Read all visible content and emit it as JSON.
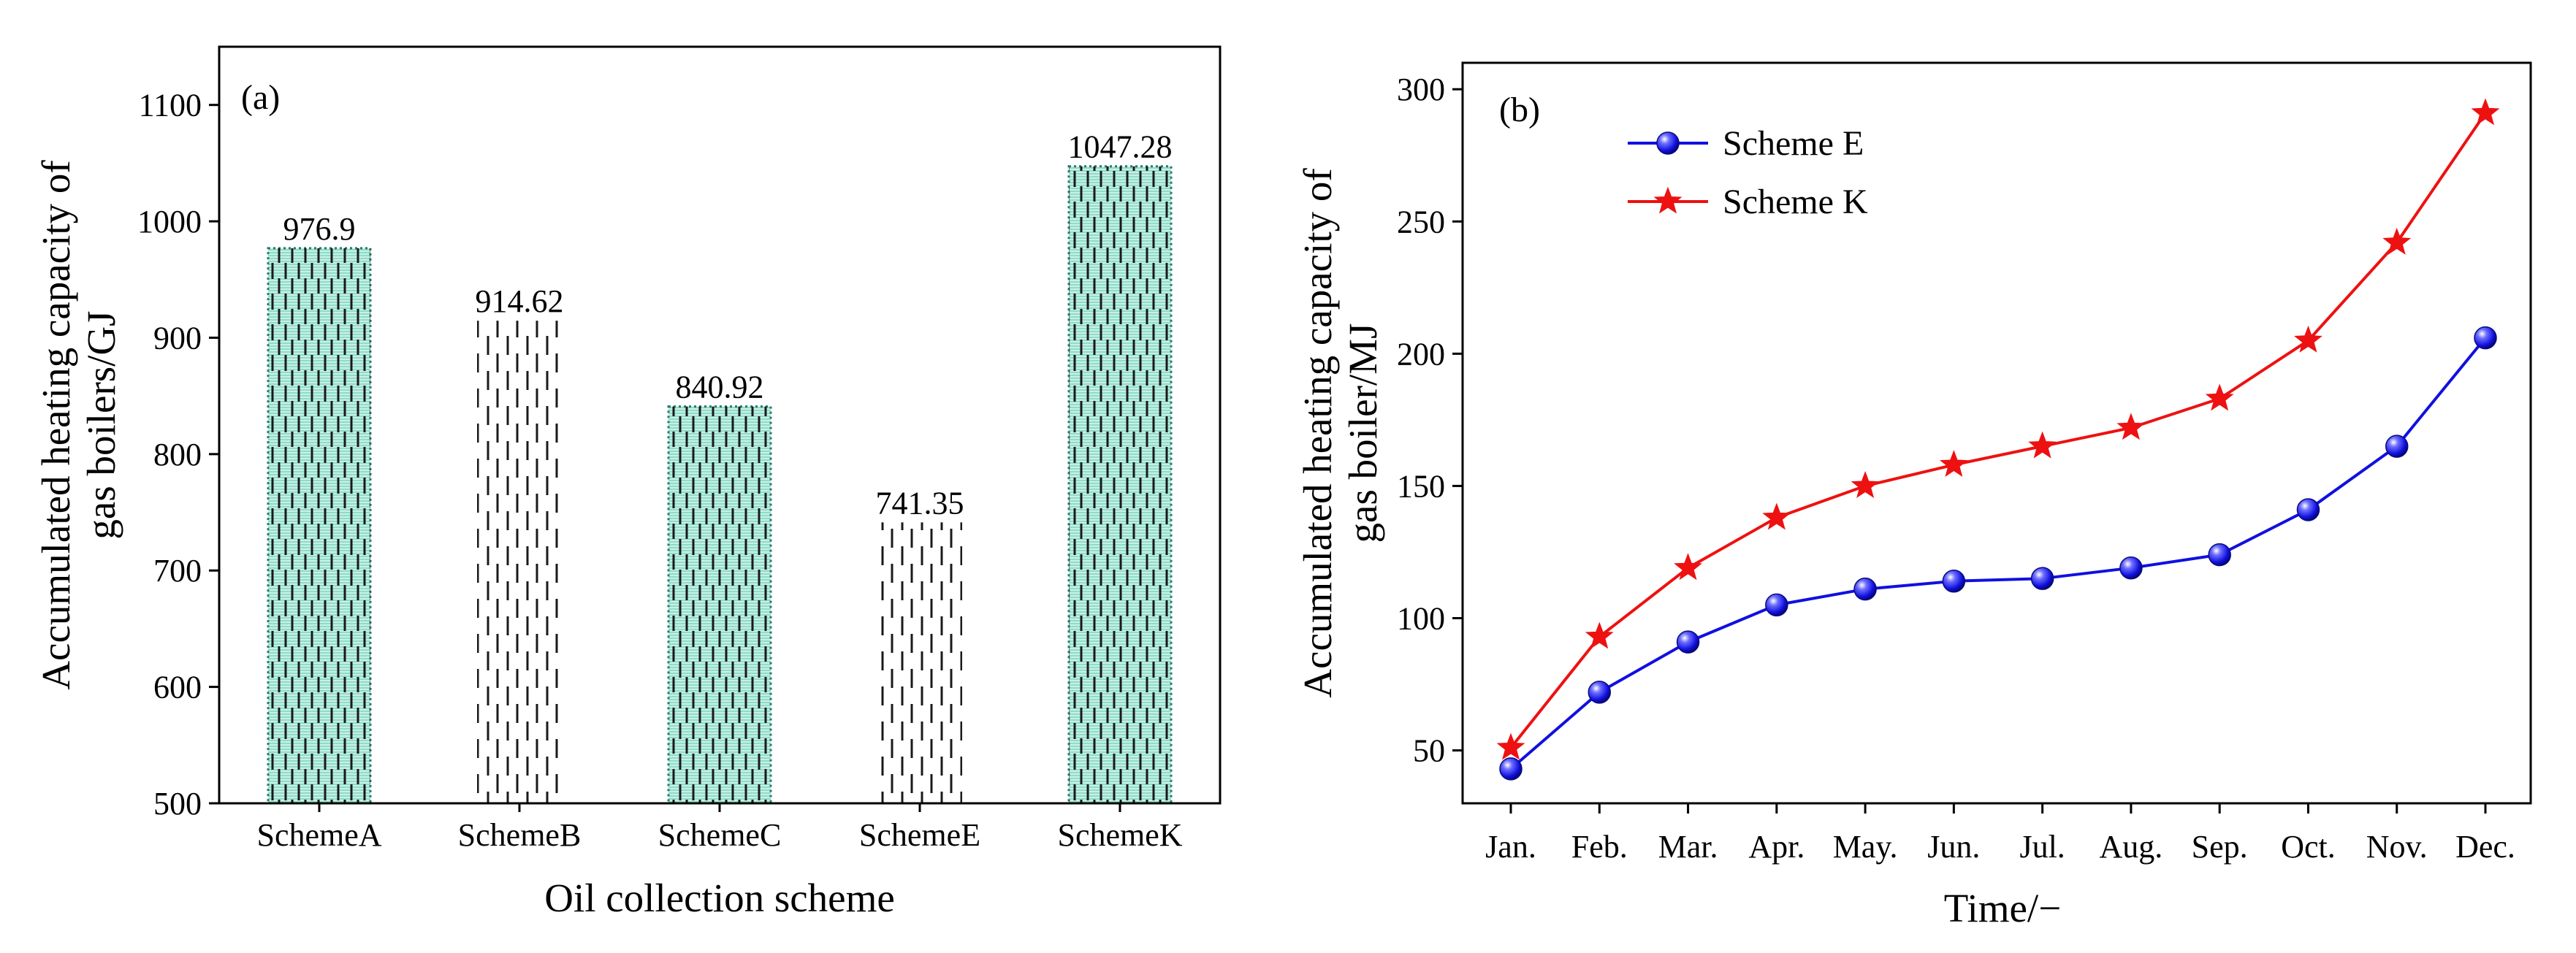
{
  "colors": {
    "bar_fill": "#b9ece0",
    "bar_pattern": "#1a1a1a",
    "scheme_e": "#1010e0",
    "scheme_k": "#ee1111",
    "axis": "#000000"
  },
  "chart_data": [
    {
      "type": "bar",
      "title": "(a)",
      "xlabel": "Oil collection scheme",
      "ylabel_lines": [
        "Accumulated heating capacity of",
        "gas boilers/GJ"
      ],
      "categories": [
        "SchemeA",
        "SchemeB",
        "SchemeC",
        "SchemeE",
        "SchemeK"
      ],
      "values": [
        976.9,
        914.62,
        840.92,
        741.35,
        1047.28
      ],
      "value_labels": [
        "976.9",
        "914.62",
        "840.92",
        "741.35",
        "1047.28"
      ],
      "filled": [
        true,
        false,
        true,
        false,
        true
      ],
      "ylim": [
        500,
        1150
      ],
      "yticks": [
        500,
        600,
        700,
        800,
        900,
        1000,
        1100
      ]
    },
    {
      "type": "line",
      "title": "(b)",
      "xlabel": "Time/−",
      "ylabel_lines": [
        "Accumulated heating capacity of",
        "gas boiler/MJ"
      ],
      "categories": [
        "Jan.",
        "Feb.",
        "Mar.",
        "Apr.",
        "May.",
        "Jun.",
        "Jul.",
        "Aug.",
        "Sep.",
        "Oct.",
        "Nov.",
        "Dec."
      ],
      "series": [
        {
          "name": "Scheme E",
          "marker": "sphere",
          "color": "#1010e0",
          "values": [
            43,
            72,
            91,
            105,
            111,
            114,
            115,
            119,
            124,
            141,
            165,
            206
          ]
        },
        {
          "name": "Scheme K",
          "marker": "star",
          "color": "#ee1111",
          "values": [
            51,
            93,
            119,
            138,
            150,
            158,
            165,
            172,
            183,
            205,
            242,
            291
          ]
        }
      ],
      "ylim": [
        30,
        310
      ],
      "yticks": [
        50,
        100,
        150,
        200,
        250,
        300
      ],
      "legend_position": "top-left"
    }
  ]
}
